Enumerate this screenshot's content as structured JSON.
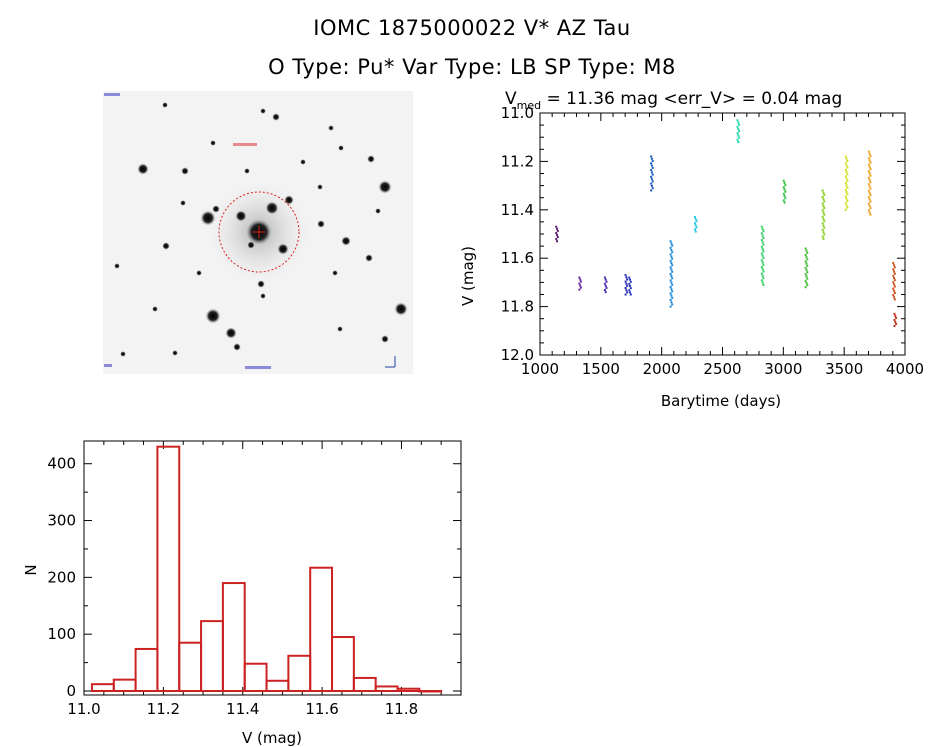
{
  "header": {
    "title": "IOMC 1875000022   V* AZ Tau",
    "subtitle": "O Type: Pu*  Var Type: LB  SP Type: M8"
  },
  "sky_image": {
    "description_free": true
  },
  "chart_data": [
    {
      "type": "scatter",
      "title_prefix": "V",
      "title_subscript": "med",
      "title_rest": " = 11.36 mag <err_V> = 0.04 mag",
      "xlabel": "Barytime (days)",
      "ylabel": "V (mag)",
      "xlim": [
        1000,
        4000
      ],
      "ylim": [
        12.0,
        11.0
      ],
      "y_inverted": true,
      "x_ticks": [
        1000,
        1500,
        2000,
        2500,
        3000,
        3500,
        4000
      ],
      "y_ticks": [
        "11.0",
        "11.2",
        "11.4",
        "11.6",
        "11.8",
        "12.0"
      ],
      "series": [
        {
          "color": "#5a1a6e",
          "x": 1140,
          "ymin": 11.47,
          "ymax": 11.53
        },
        {
          "color": "#6a2aa0",
          "x": 1330,
          "ymin": 11.68,
          "ymax": 11.73
        },
        {
          "color": "#4a2ab0",
          "x": 1540,
          "ymin": 11.68,
          "ymax": 11.74
        },
        {
          "color": "#2a2ab0",
          "x": 1710,
          "ymin": 11.67,
          "ymax": 11.75
        },
        {
          "color": "#2a3ac0",
          "x": 1740,
          "ymin": 11.68,
          "ymax": 11.75
        },
        {
          "color": "#1a5ac0",
          "x": 1920,
          "ymin": 11.18,
          "ymax": 11.32
        },
        {
          "color": "#1a8ad8",
          "x": 2080,
          "ymin": 11.53,
          "ymax": 11.8
        },
        {
          "color": "#20c8e0",
          "x": 2280,
          "ymin": 11.43,
          "ymax": 11.49
        },
        {
          "color": "#20d8a8",
          "x": 2630,
          "ymin": 11.03,
          "ymax": 11.12
        },
        {
          "color": "#30d060",
          "x": 2830,
          "ymin": 11.47,
          "ymax": 11.71
        },
        {
          "color": "#30c040",
          "x": 3010,
          "ymin": 11.28,
          "ymax": 11.37
        },
        {
          "color": "#40c030",
          "x": 3190,
          "ymin": 11.56,
          "ymax": 11.72
        },
        {
          "color": "#88d020",
          "x": 3330,
          "ymin": 11.32,
          "ymax": 11.52
        },
        {
          "color": "#d0e020",
          "x": 3520,
          "ymin": 11.18,
          "ymax": 11.4
        },
        {
          "color": "#f0a020",
          "x": 3710,
          "ymin": 11.16,
          "ymax": 11.42
        },
        {
          "color": "#d05018",
          "x": 3910,
          "ymin": 11.62,
          "ymax": 11.77
        },
        {
          "color": "#c03018",
          "x": 3920,
          "ymin": 11.83,
          "ymax": 11.88
        }
      ]
    },
    {
      "type": "bar",
      "style": "histogram-step",
      "xlabel": "V (mag)",
      "ylabel": "N",
      "xlim": [
        11.0,
        11.95
      ],
      "ylim": [
        0,
        440
      ],
      "x_ticks": [
        "11.0",
        "11.2",
        "11.4",
        "11.6",
        "11.8"
      ],
      "y_ticks": [
        "0",
        "100",
        "200",
        "300",
        "400"
      ],
      "bin_width": 0.055,
      "bin_starts": [
        11.02,
        11.075,
        11.13,
        11.185,
        11.24,
        11.295,
        11.35,
        11.405,
        11.46,
        11.515,
        11.57,
        11.625,
        11.68,
        11.735,
        11.79,
        11.845
      ],
      "values": [
        12,
        20,
        74,
        430,
        85,
        123,
        190,
        48,
        18,
        62,
        217,
        95,
        23,
        8,
        4,
        0
      ],
      "color": "#cc2222"
    }
  ]
}
